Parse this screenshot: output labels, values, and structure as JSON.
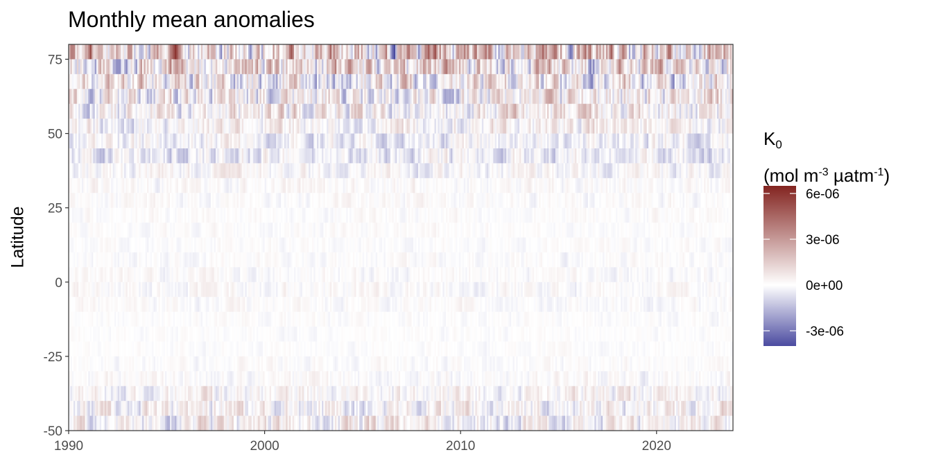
{
  "chart_data": {
    "type": "heatmap",
    "title": "Monthly mean anomalies",
    "xlabel": "",
    "ylabel": "Latitude",
    "xlim": [
      1990,
      2023.9
    ],
    "ylim": [
      -50,
      80
    ],
    "x_ticks": [
      1990,
      2000,
      2010,
      2020
    ],
    "y_ticks": [
      75,
      50,
      25,
      0,
      -25,
      -50
    ],
    "color_scale": {
      "title_var": "K",
      "title_sub": "0",
      "title_units_pre": "(mol m",
      "title_units_sup1": "-3",
      "title_units_mid": " µatm",
      "title_units_sup2": "-1",
      "title_units_post": ")",
      "limits": [
        -4e-06,
        6.5e-06
      ],
      "ticks": [
        6e-06,
        3e-06,
        0,
        -3e-06
      ],
      "tick_labels": [
        "6e-06",
        "3e-06",
        "0e+00",
        "-3e-06"
      ],
      "low_color": "#4B4BA0",
      "mid_color": "#FFFFFF",
      "high_color": "#832420"
    },
    "latitude_bands": [
      {
        "lat": 77.5,
        "mean_anomaly": 1.2e-06,
        "variability": 3.2e-06
      },
      {
        "lat": 72.5,
        "mean_anomaly": 6e-07,
        "variability": 2.6e-06
      },
      {
        "lat": 67.5,
        "mean_anomaly": 2e-07,
        "variability": 2.2e-06
      },
      {
        "lat": 62.5,
        "mean_anomaly": 4e-07,
        "variability": 1.9e-06
      },
      {
        "lat": 57.5,
        "mean_anomaly": 4e-07,
        "variability": 1.5e-06
      },
      {
        "lat": 52.5,
        "mean_anomaly": 1e-07,
        "variability": 1.1e-06
      },
      {
        "lat": 47.5,
        "mean_anomaly": -2e-07,
        "variability": 1e-06
      },
      {
        "lat": 42.5,
        "mean_anomaly": -3e-07,
        "variability": 1e-06
      },
      {
        "lat": 37.5,
        "mean_anomaly": 0.0,
        "variability": 7e-07
      },
      {
        "lat": 32.5,
        "mean_anomaly": 1e-07,
        "variability": 4.5e-07
      },
      {
        "lat": 27.5,
        "mean_anomaly": 5e-08,
        "variability": 3.5e-07
      },
      {
        "lat": 22.5,
        "mean_anomaly": 5e-08,
        "variability": 3e-07
      },
      {
        "lat": 17.5,
        "mean_anomaly": 5e-08,
        "variability": 2.5e-07
      },
      {
        "lat": 12.5,
        "mean_anomaly": 0.0,
        "variability": 2.5e-07
      },
      {
        "lat": 7.5,
        "mean_anomaly": 0.0,
        "variability": 3e-07
      },
      {
        "lat": 2.5,
        "mean_anomaly": 0.0,
        "variability": 4e-07
      },
      {
        "lat": -2.5,
        "mean_anomaly": 0.0,
        "variability": 4.5e-07
      },
      {
        "lat": -7.5,
        "mean_anomaly": 0.0,
        "variability": 3.5e-07
      },
      {
        "lat": -12.5,
        "mean_anomaly": 0.0,
        "variability": 2.5e-07
      },
      {
        "lat": -17.5,
        "mean_anomaly": 0.0,
        "variability": 2e-07
      },
      {
        "lat": -22.5,
        "mean_anomaly": 0.0,
        "variability": 2e-07
      },
      {
        "lat": -27.5,
        "mean_anomaly": 2e-08,
        "variability": 3e-07
      },
      {
        "lat": -32.5,
        "mean_anomaly": 5e-08,
        "variability": 4.5e-07
      },
      {
        "lat": -37.5,
        "mean_anomaly": 1e-07,
        "variability": 9e-07
      },
      {
        "lat": -42.5,
        "mean_anomaly": 1.5e-07,
        "variability": 1.2e-06
      },
      {
        "lat": -47.5,
        "mean_anomaly": 1e-07,
        "variability": 1.3e-06
      }
    ]
  }
}
